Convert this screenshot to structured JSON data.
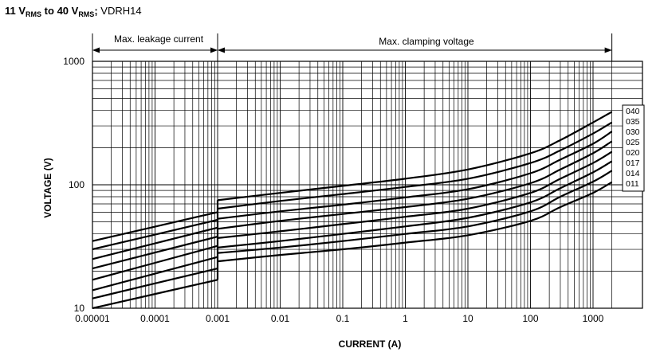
{
  "header": {
    "range_from": "11 V",
    "range_to": "40 V",
    "sub": "RMS",
    "to_word": "to",
    "product": "VDRH14"
  },
  "chart_data": {
    "type": "line",
    "xlabel": "CURRENT (A)",
    "ylabel": "VOLTAGE (V)",
    "xscale": "log",
    "yscale": "log",
    "xlim": [
      1e-05,
      2000
    ],
    "ylim": [
      10,
      1000
    ],
    "x_ticks": [
      "0.00001",
      "0.0001",
      "0.001",
      "0.01",
      "0.1",
      "1",
      "10",
      "100",
      "1000"
    ],
    "y_ticks": [
      "10",
      "100",
      "1000"
    ],
    "grid": true,
    "legend_position": "right",
    "annotations": {
      "leakage": "Max. leakage current",
      "clamping": "Max. clamping voltage"
    },
    "series": [
      {
        "name": "040",
        "leakage": {
          "x": [
            1e-05,
            0.001
          ],
          "y": [
            35,
            60
          ]
        },
        "clamping": {
          "x": [
            0.001,
            0.01,
            0.1,
            1,
            10,
            100,
            300,
            1000,
            2000
          ],
          "y": [
            75,
            86,
            98,
            112,
            133,
            180,
            230,
            320,
            390
          ]
        }
      },
      {
        "name": "035",
        "leakage": {
          "x": [
            1e-05,
            0.001
          ],
          "y": [
            30,
            52
          ]
        },
        "clamping": {
          "x": [
            0.001,
            0.01,
            0.1,
            1,
            10,
            100,
            300,
            1000,
            2000
          ],
          "y": [
            64,
            74,
            84,
            96,
            112,
            150,
            190,
            260,
            320
          ]
        }
      },
      {
        "name": "030",
        "leakage": {
          "x": [
            1e-05,
            0.001
          ],
          "y": [
            25,
            45
          ]
        },
        "clamping": {
          "x": [
            0.001,
            0.01,
            0.1,
            1,
            10,
            100,
            300,
            1000,
            2000
          ],
          "y": [
            53,
            61,
            69,
            79,
            92,
            124,
            160,
            215,
            270
          ]
        }
      },
      {
        "name": "025",
        "leakage": {
          "x": [
            1e-05,
            0.001
          ],
          "y": [
            21,
            38
          ]
        },
        "clamping": {
          "x": [
            0.001,
            0.01,
            0.1,
            1,
            10,
            100,
            300,
            1000,
            2000
          ],
          "y": [
            44,
            51,
            58,
            66,
            77,
            103,
            133,
            180,
            225
          ]
        }
      },
      {
        "name": "020",
        "leakage": {
          "x": [
            1e-05,
            0.001
          ],
          "y": [
            17,
            32
          ]
        },
        "clamping": {
          "x": [
            0.001,
            0.01,
            0.1,
            1,
            10,
            100,
            300,
            1000,
            2000
          ],
          "y": [
            37,
            42,
            48,
            55,
            64,
            86,
            112,
            150,
            185
          ]
        }
      },
      {
        "name": "017",
        "leakage": {
          "x": [
            1e-05,
            0.001
          ],
          "y": [
            14,
            26
          ]
        },
        "clamping": {
          "x": [
            0.001,
            0.01,
            0.1,
            1,
            10,
            100,
            300,
            1000,
            2000
          ],
          "y": [
            31,
            35,
            40,
            46,
            54,
            72,
            94,
            126,
            155
          ]
        }
      },
      {
        "name": "014",
        "leakage": {
          "x": [
            1e-05,
            0.001
          ],
          "y": [
            12,
            21
          ]
        },
        "clamping": {
          "x": [
            0.001,
            0.01,
            0.1,
            1,
            10,
            100,
            300,
            1000,
            2000
          ],
          "y": [
            28,
            31,
            35,
            40,
            46,
            61,
            80,
            106,
            130
          ]
        }
      },
      {
        "name": "011",
        "leakage": {
          "x": [
            1e-05,
            0.001
          ],
          "y": [
            10,
            17
          ]
        },
        "clamping": {
          "x": [
            0.001,
            0.01,
            0.1,
            1,
            10,
            100,
            300,
            1000,
            2000
          ],
          "y": [
            24,
            27,
            30,
            34,
            39,
            51,
            66,
            86,
            105
          ]
        }
      }
    ]
  }
}
